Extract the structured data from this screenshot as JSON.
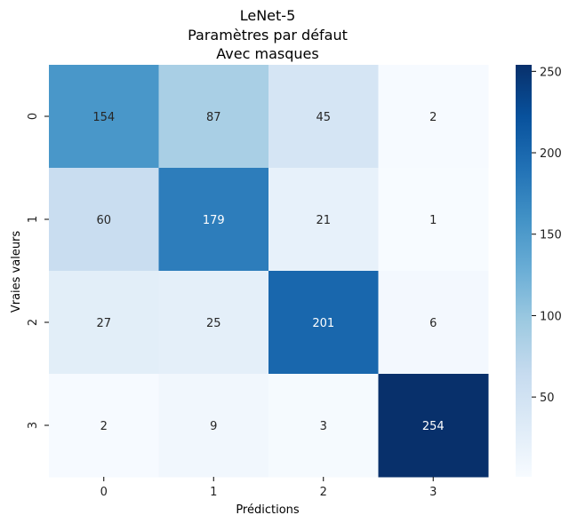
{
  "chart_data": {
    "type": "heatmap",
    "title_lines": [
      "LeNet-5",
      "Paramètres par défaut",
      "Avec masques"
    ],
    "xlabel": "Prédictions",
    "ylabel": "Vraies valeurs",
    "x_categories": [
      "0",
      "1",
      "2",
      "3"
    ],
    "y_categories": [
      "0",
      "1",
      "2",
      "3"
    ],
    "values": [
      [
        154,
        87,
        45,
        2
      ],
      [
        60,
        179,
        21,
        1
      ],
      [
        27,
        25,
        201,
        6
      ],
      [
        2,
        9,
        3,
        254
      ]
    ],
    "colormap": "Blues",
    "colorbar": {
      "range": [
        1,
        254
      ],
      "ticks": [
        50,
        100,
        150,
        200,
        250
      ]
    }
  }
}
